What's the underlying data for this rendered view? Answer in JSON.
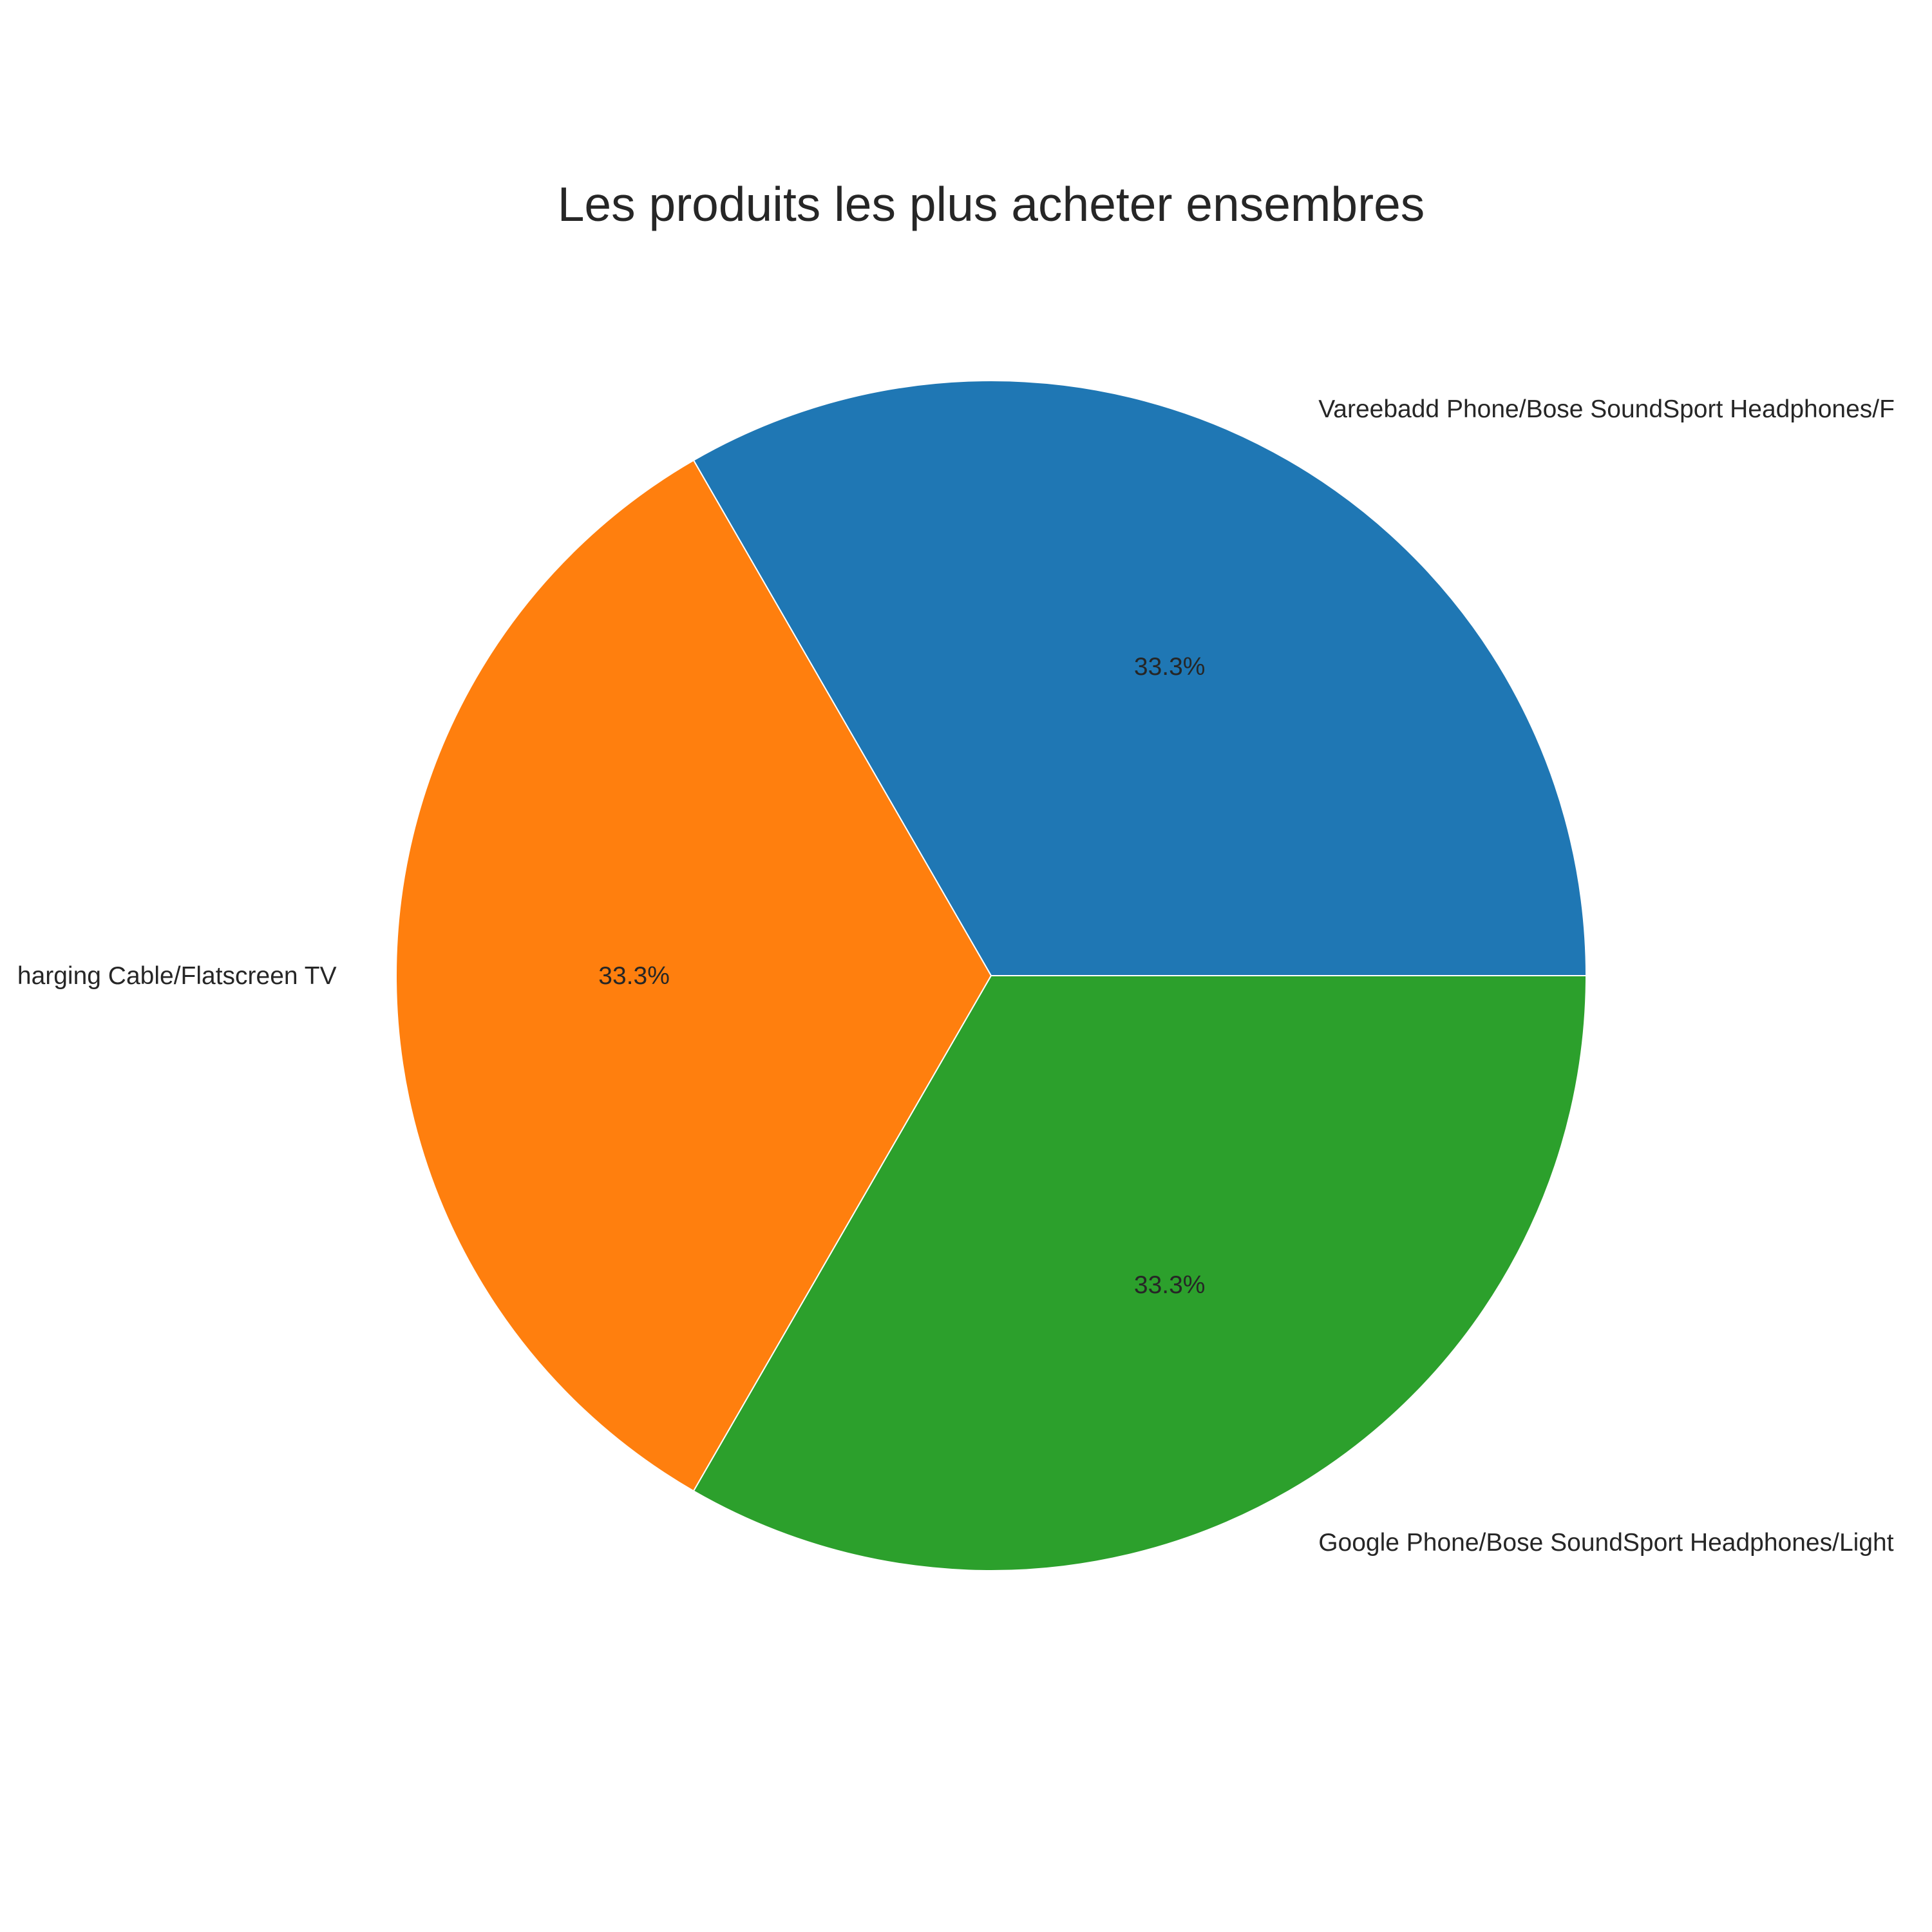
{
  "chart_data": {
    "type": "pie",
    "title": "Les produits les plus acheter ensembres",
    "labels": [
      "Vareebadd Phone/Bose SoundSport Headphones/Flatscreen TV",
      "Lightning Charging Cable/Flatscreen TV",
      "Google Phone/Bose SoundSport Headphones/Lightning Charging Cable"
    ],
    "visible_labels": [
      "Vareebadd Phone/Bose SoundSport Headphones/F",
      "harging Cable/Flatscreen TV",
      "Google Phone/Bose SoundSport Headphones/Light"
    ],
    "values": [
      1,
      1,
      1
    ],
    "percent_labels": [
      "33.3%",
      "33.3%",
      "33.3%"
    ],
    "colors": [
      "#1f77b4",
      "#ff7f0e",
      "#2ca02c"
    ],
    "start_angle_deg": 0,
    "direction": "counterclockwise",
    "edge_color": "#ffffff",
    "legend": "none"
  }
}
